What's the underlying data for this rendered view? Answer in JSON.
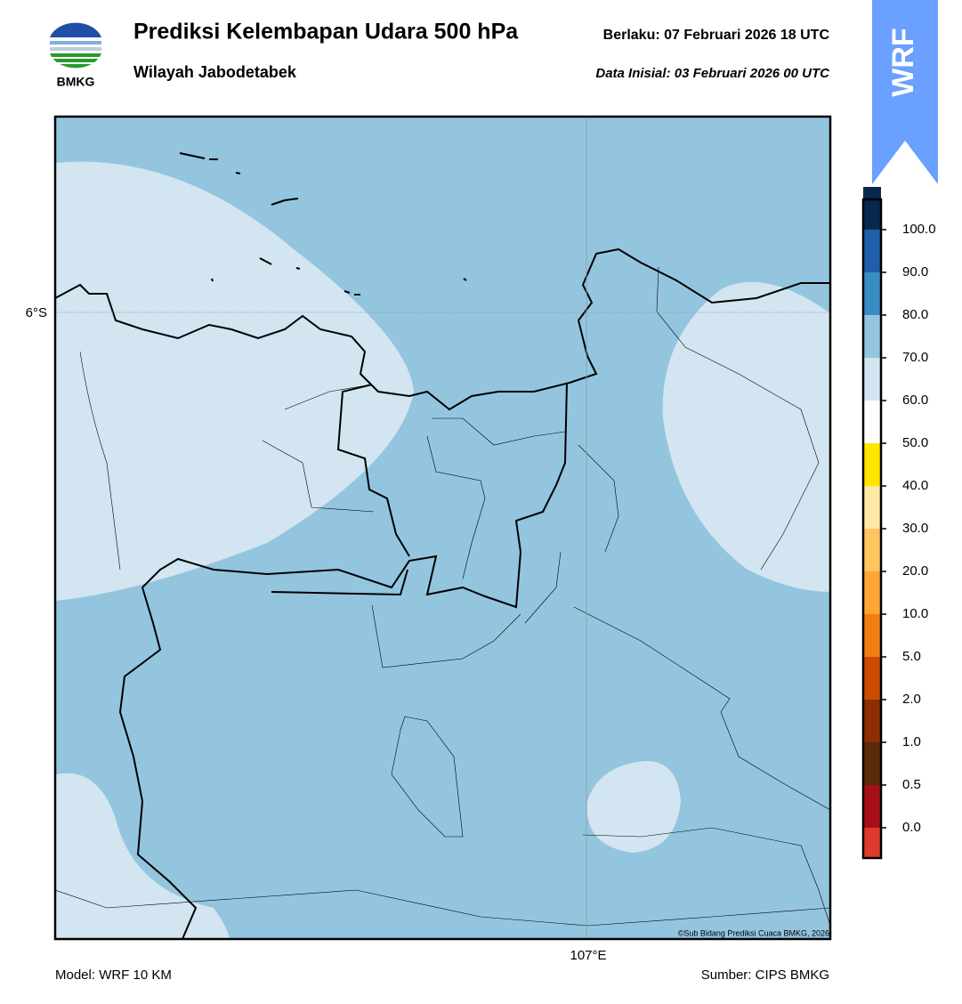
{
  "header": {
    "title": "Prediksi Kelembapan Udara 500 hPa",
    "subtitle": "Wilayah Jabodetabek",
    "valid": "Berlaku:  07 Februari 2026 18 UTC",
    "initial": "Data Inisial:  03 Februari 2026 00 UTC",
    "logo_text": "BMKG",
    "badge": "WRF"
  },
  "map": {
    "lat_label": "6°S",
    "lon_label": "107°E",
    "credit": "©Sub Bidang Prediksi Cuaca BMKG, 2026"
  },
  "footer": {
    "model": "Model: WRF 10 KM",
    "source": "Sumber: CIPS BMKG"
  },
  "colorbar": {
    "colors": [
      "#e03a2e",
      "#a50f15",
      "#5b2a0b",
      "#8c2d04",
      "#cc4d02",
      "#f17d13",
      "#fda535",
      "#fec560",
      "#fde8a5",
      "#ffe500",
      "#ffffff",
      "#d2e5f0",
      "#94c5df",
      "#3a8cc4",
      "#1f5ea8",
      "#08294d",
      "#2d0a4e"
    ],
    "ticks": [
      {
        "value": 0,
        "label": "0.0"
      },
      {
        "value": 0.5,
        "label": "0.5"
      },
      {
        "value": 1,
        "label": "1.0"
      },
      {
        "value": 2,
        "label": "2.0"
      },
      {
        "value": 5,
        "label": "5.0"
      },
      {
        "value": 10,
        "label": "10.0"
      },
      {
        "value": 20,
        "label": "20.0"
      },
      {
        "value": 30,
        "label": "30.0"
      },
      {
        "value": 40,
        "label": "40.0"
      },
      {
        "value": 50,
        "label": "50.0"
      },
      {
        "value": 60,
        "label": "60.0"
      },
      {
        "value": 70,
        "label": "70.0"
      },
      {
        "value": 80,
        "label": "80.0"
      },
      {
        "value": 90,
        "label": "90.0"
      },
      {
        "value": 100,
        "label": "100.0"
      }
    ]
  }
}
